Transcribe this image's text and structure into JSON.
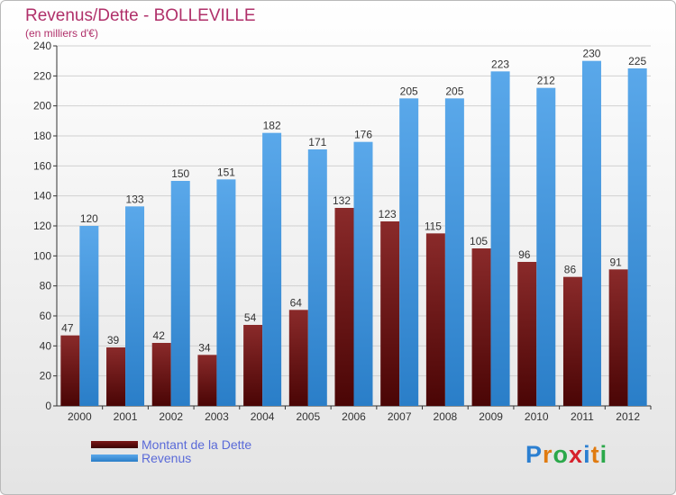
{
  "header": {
    "title": "Revenus/Dette - BOLLEVILLE",
    "subtitle": "(en milliers d'€)"
  },
  "legend": {
    "items": [
      {
        "label": "Montant de la Dette",
        "color": "#6b0d0d"
      },
      {
        "label": "Revenus",
        "color": "#3d95e0"
      }
    ]
  },
  "logo": {
    "letters": [
      "P",
      "r",
      "o",
      "x",
      "i",
      "t",
      "i"
    ],
    "colors": [
      "#2b7fd1",
      "#e07b10",
      "#2ba84a",
      "#d6212b",
      "#2b7fd1",
      "#e07b10",
      "#2ba84a"
    ]
  },
  "chart_data": {
    "type": "bar",
    "title": "Revenus/Dette - BOLLEVILLE",
    "ylabel": "(en milliers d'€)",
    "xlabel": "",
    "categories": [
      "2000",
      "2001",
      "2002",
      "2003",
      "2004",
      "2005",
      "2006",
      "2007",
      "2008",
      "2009",
      "2010",
      "2011",
      "2012"
    ],
    "series": [
      {
        "name": "Montant de la Dette",
        "color": "#7a1a1a",
        "values": [
          47,
          39,
          42,
          34,
          54,
          64,
          132,
          123,
          115,
          105,
          96,
          86,
          91
        ]
      },
      {
        "name": "Revenus",
        "color": "#3d95e0",
        "values": [
          120,
          133,
          150,
          151,
          182,
          171,
          176,
          205,
          205,
          223,
          212,
          230,
          225
        ]
      }
    ],
    "ylim": [
      0,
      240
    ],
    "yticks": [
      0,
      20,
      40,
      60,
      80,
      100,
      120,
      140,
      160,
      180,
      200,
      220,
      240
    ],
    "grid": true,
    "legend": "bottom-left"
  }
}
